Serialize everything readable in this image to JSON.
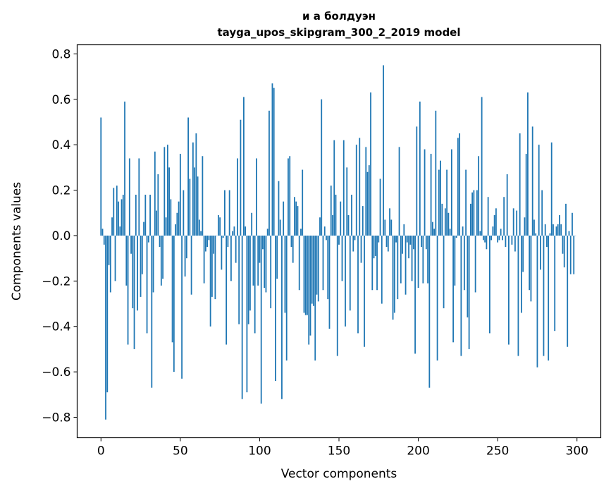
{
  "chart_data": {
    "type": "bar",
    "title": [
      "и а болдуэн",
      "tayga_upos_skipgram_300_2_2019 model"
    ],
    "xlabel": "Vector components",
    "ylabel": "Components values",
    "xlim": [
      -15,
      315
    ],
    "ylim": [
      -0.89,
      0.84
    ],
    "xticks": [
      0,
      50,
      100,
      150,
      200,
      250,
      300
    ],
    "xtick_labels": [
      "0",
      "50",
      "100",
      "150",
      "200",
      "250",
      "300"
    ],
    "yticks": [
      0.8,
      0.6,
      0.4,
      0.2,
      0.0,
      -0.2,
      -0.4,
      -0.6,
      -0.8
    ],
    "ytick_labels": [
      "0.8",
      "0.6",
      "0.4",
      "0.2",
      "0.0",
      "−0.2",
      "−0.4",
      "−0.6",
      "−0.8"
    ],
    "grid": false,
    "color": "#1f77b4",
    "values": [
      0.52,
      0.03,
      -0.04,
      -0.81,
      -0.69,
      -0.13,
      -0.25,
      0.08,
      0.21,
      -0.2,
      0.22,
      0.15,
      0.04,
      0.16,
      0.18,
      0.59,
      -0.22,
      -0.48,
      0.34,
      -0.08,
      -0.32,
      -0.5,
      0.18,
      -0.33,
      0.34,
      -0.27,
      -0.17,
      0.06,
      0.18,
      -0.43,
      -0.03,
      0.18,
      -0.67,
      -0.25,
      0.37,
      0.11,
      0.27,
      -0.05,
      -0.22,
      -0.19,
      0.39,
      0.08,
      0.4,
      0.3,
      0.16,
      -0.47,
      -0.6,
      0.05,
      0.1,
      0.15,
      0.36,
      -0.63,
      0.2,
      -0.18,
      -0.1,
      0.52,
      0.25,
      -0.26,
      0.41,
      0.3,
      0.45,
      0.26,
      0.07,
      0.02,
      0.35,
      -0.21,
      -0.07,
      -0.05,
      -0.02,
      -0.4,
      -0.27,
      -0.08,
      -0.28,
      0.0,
      0.09,
      0.08,
      -0.15,
      -0.01,
      0.2,
      -0.48,
      -0.05,
      0.2,
      -0.2,
      0.02,
      0.04,
      -0.12,
      0.34,
      -0.39,
      0.51,
      -0.72,
      0.61,
      0.04,
      -0.69,
      -0.39,
      -0.33,
      0.1,
      -0.22,
      -0.43,
      0.34,
      -0.22,
      -0.12,
      -0.74,
      -0.06,
      -0.23,
      -0.25,
      0.03,
      0.55,
      -0.32,
      0.67,
      0.65,
      -0.64,
      -0.19,
      0.24,
      0.07,
      -0.72,
      0.15,
      -0.34,
      -0.55,
      0.34,
      0.35,
      -0.05,
      -0.12,
      0.17,
      0.15,
      0.13,
      -0.24,
      0.03,
      0.29,
      -0.34,
      -0.35,
      -0.35,
      -0.48,
      -0.44,
      -0.3,
      -0.31,
      -0.55,
      -0.26,
      -0.29,
      0.08,
      0.6,
      -0.24,
      0.04,
      -0.02,
      -0.28,
      -0.41,
      0.22,
      0.09,
      0.42,
      0.18,
      -0.53,
      -0.04,
      0.15,
      -0.2,
      0.42,
      -0.4,
      0.3,
      0.09,
      -0.33,
      0.18,
      -0.07,
      -0.02,
      0.4,
      -0.43,
      0.43,
      -0.12,
      0.13,
      -0.49,
      0.39,
      0.28,
      0.31,
      0.63,
      -0.24,
      -0.1,
      -0.09,
      -0.24,
      -0.03,
      0.25,
      -0.3,
      0.75,
      0.07,
      -0.05,
      -0.07,
      0.12,
      0.07,
      -0.37,
      -0.34,
      -0.03,
      -0.28,
      0.39,
      -0.21,
      -0.08,
      0.05,
      -0.26,
      -0.03,
      -0.1,
      -0.04,
      -0.2,
      -0.06,
      -0.52,
      0.48,
      -0.23,
      0.59,
      -0.05,
      -0.21,
      0.38,
      -0.06,
      -0.21,
      -0.67,
      0.36,
      0.06,
      0.03,
      0.55,
      -0.55,
      0.29,
      0.33,
      0.14,
      -0.32,
      0.12,
      0.29,
      0.1,
      0.03,
      0.38,
      -0.47,
      -0.22,
      -0.01,
      0.43,
      0.45,
      -0.53,
      0.04,
      -0.24,
      0.29,
      -0.36,
      -0.5,
      0.14,
      0.19,
      0.2,
      -0.25,
      0.2,
      0.35,
      0.02,
      0.61,
      -0.02,
      -0.03,
      -0.06,
      0.17,
      -0.43,
      -0.02,
      0.04,
      0.09,
      0.12,
      -0.03,
      -0.02,
      0.03,
      -0.02,
      0.17,
      -0.05,
      0.27,
      -0.48,
      0.0,
      -0.04,
      0.12,
      -0.07,
      0.11,
      -0.53,
      0.45,
      -0.34,
      -0.16,
      0.08,
      0.36,
      0.63,
      -0.24,
      -0.29,
      0.48,
      0.07,
      0.01,
      -0.58,
      0.4,
      -0.15,
      0.2,
      -0.53,
      0.05,
      -0.05,
      -0.55,
      0.01,
      0.41,
      0.05,
      -0.42,
      0.04,
      0.05,
      0.09,
      0.05,
      -0.08,
      -0.14,
      0.14,
      -0.49,
      0.02,
      -0.17,
      0.1,
      -0.17,
      0.0
    ]
  }
}
